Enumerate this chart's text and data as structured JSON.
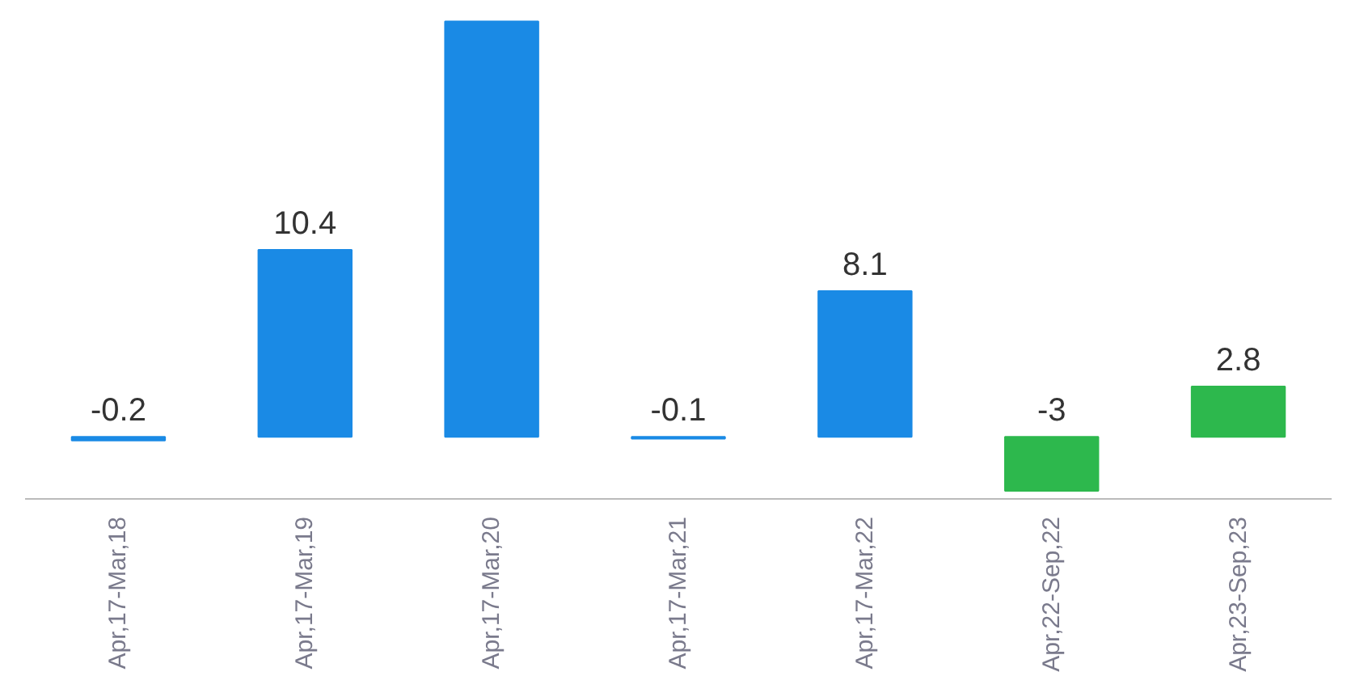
{
  "chart_data": {
    "type": "bar",
    "categories": [
      "Apr,17-Mar,18",
      "Apr,17-Mar,19",
      "Apr,17-Mar,20",
      "Apr,17-Mar,21",
      "Apr,17-Mar,22",
      "Apr,22-Sep,22",
      "Apr,23-Sep,23"
    ],
    "values": [
      -0.2,
      10.4,
      23.1,
      -0.1,
      8.1,
      -3,
      2.8
    ],
    "colors": [
      "#1a8ae5",
      "#1a8ae5",
      "#1a8ae5",
      "#1a8ae5",
      "#1a8ae5",
      "#2db84d",
      "#2db84d"
    ],
    "value_labels": [
      "-0.2",
      "10.4",
      null,
      "-0.1",
      "8.1",
      "-3",
      "2.8"
    ],
    "tick_labels": "x",
    "grid": false
  }
}
